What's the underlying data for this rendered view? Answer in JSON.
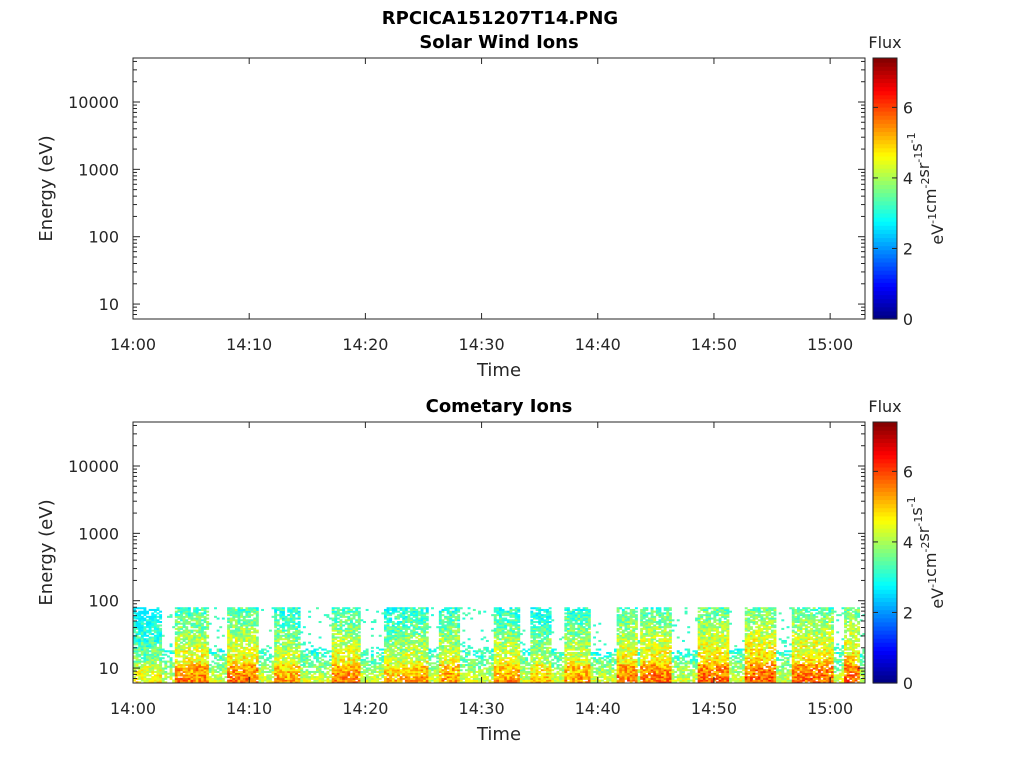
{
  "figure_title": "RPCICA151207T14.PNG",
  "chart_data": [
    {
      "type": "heatmap",
      "title": "Solar Wind Ions",
      "xlabel": "Time",
      "ylabel": "Energy (eV)",
      "x_tick_labels": [
        "14:00",
        "14:10",
        "14:20",
        "14:30",
        "14:40",
        "14:50",
        "15:00"
      ],
      "x_tick_minutes": [
        0,
        10,
        20,
        30,
        40,
        50,
        60
      ],
      "xlim_minutes": [
        0,
        63
      ],
      "ylim": [
        6,
        45000
      ],
      "yscale": "log",
      "y_tick_labels": [
        "10",
        "100",
        "1000",
        "10000"
      ],
      "y_tick_values": [
        10,
        100,
        1000,
        10000
      ],
      "colorbar": {
        "title": "Flux",
        "label": "eV^-1 cm^-2 sr^-1 s^-1",
        "range": [
          0,
          7.4
        ],
        "tick_labels": [
          "0",
          "2",
          "4",
          "6"
        ],
        "tick_values": [
          0,
          2,
          4,
          6
        ],
        "colormap": "jet"
      },
      "data_present": false
    },
    {
      "type": "heatmap",
      "title": "Cometary Ions",
      "xlabel": "Time",
      "ylabel": "Energy (eV)",
      "x_tick_labels": [
        "14:00",
        "14:10",
        "14:20",
        "14:30",
        "14:40",
        "14:50",
        "15:00"
      ],
      "x_tick_minutes": [
        0,
        10,
        20,
        30,
        40,
        50,
        60
      ],
      "xlim_minutes": [
        0,
        63
      ],
      "ylim": [
        6,
        45000
      ],
      "yscale": "log",
      "y_tick_labels": [
        "10",
        "100",
        "1000",
        "10000"
      ],
      "y_tick_values": [
        10,
        100,
        1000,
        10000
      ],
      "colorbar": {
        "title": "Flux",
        "label": "eV^-1 cm^-2 sr^-1 s^-1",
        "range": [
          0,
          7.4
        ],
        "tick_labels": [
          "0",
          "2",
          "4",
          "6"
        ],
        "tick_values": [
          0,
          2,
          4,
          6
        ],
        "colormap": "jet"
      },
      "data_present": true,
      "background_energy_top_eV": 20,
      "burst_energy_top_eV": 80,
      "bursts": [
        {
          "start_min": 0.0,
          "end_min": 2.3,
          "peak": 4.3
        },
        {
          "start_min": 3.5,
          "end_min": 6.5,
          "peak": 5.2
        },
        {
          "start_min": 8.0,
          "end_min": 10.6,
          "peak": 5.3
        },
        {
          "start_min": 12.0,
          "end_min": 14.2,
          "peak": 4.9
        },
        {
          "start_min": 17.0,
          "end_min": 19.4,
          "peak": 5.2
        },
        {
          "start_min": 21.5,
          "end_min": 23.3,
          "peak": 4.8
        },
        {
          "start_min": 23.4,
          "end_min": 25.2,
          "peak": 5.0
        },
        {
          "start_min": 26.3,
          "end_min": 28.1,
          "peak": 5.0
        },
        {
          "start_min": 31.0,
          "end_min": 33.1,
          "peak": 5.0
        },
        {
          "start_min": 34.0,
          "end_min": 35.8,
          "peak": 4.7
        },
        {
          "start_min": 37.0,
          "end_min": 39.3,
          "peak": 5.0
        },
        {
          "start_min": 41.5,
          "end_min": 43.3,
          "peak": 5.3
        },
        {
          "start_min": 43.6,
          "end_min": 46.3,
          "peak": 5.3
        },
        {
          "start_min": 48.5,
          "end_min": 51.2,
          "peak": 5.4
        },
        {
          "start_min": 52.5,
          "end_min": 55.3,
          "peak": 5.5
        },
        {
          "start_min": 56.5,
          "end_min": 60.2,
          "peak": 5.4
        },
        {
          "start_min": 61.0,
          "end_min": 62.5,
          "peak": 5.5
        }
      ]
    }
  ]
}
